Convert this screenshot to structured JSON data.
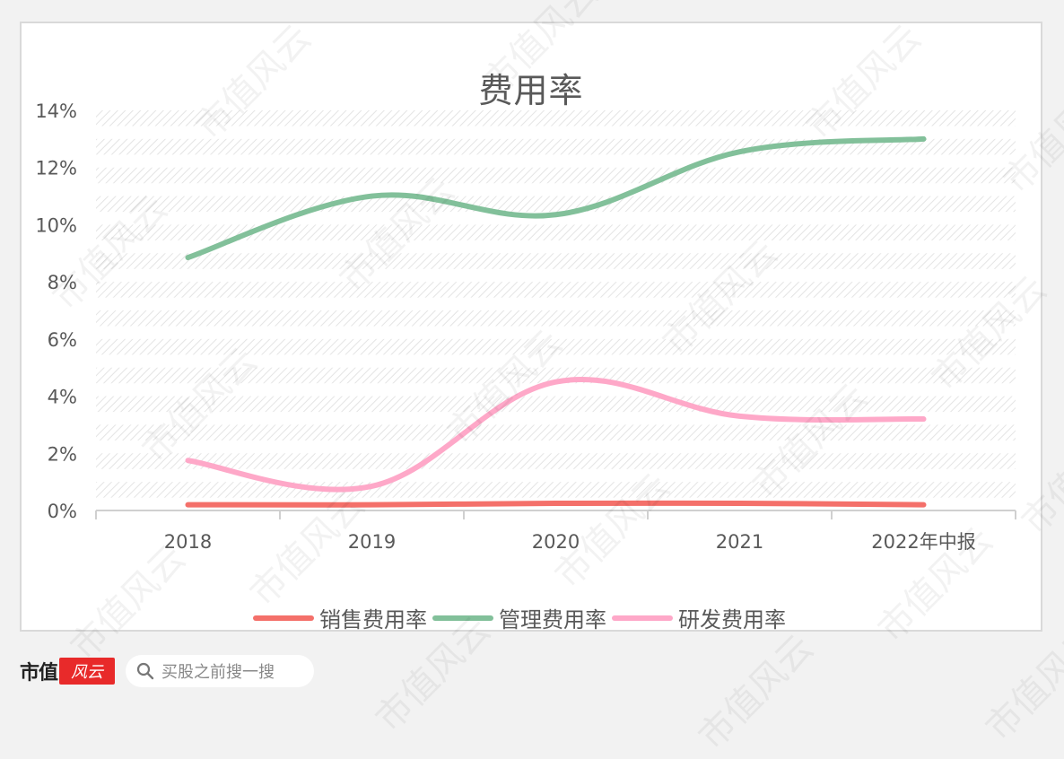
{
  "chart_data": {
    "type": "line",
    "title": "费用率",
    "xlabel": "",
    "ylabel": "",
    "categories": [
      "2018",
      "2019",
      "2020",
      "2021",
      "2022年中报"
    ],
    "y_ticks": [
      "0%",
      "2%",
      "4%",
      "6%",
      "8%",
      "10%",
      "12%",
      "14%"
    ],
    "ylim": [
      0,
      14
    ],
    "grid": "hatched horizontal bands",
    "smooth": true,
    "legend_position": "bottom",
    "series": [
      {
        "name": "销售费用率",
        "color": "#f4706a",
        "values": [
          0.2,
          0.2,
          0.25,
          0.25,
          0.2
        ]
      },
      {
        "name": "管理费用率",
        "color": "#82c09a",
        "values": [
          8.85,
          11.0,
          10.35,
          12.55,
          13.0
        ]
      },
      {
        "name": "研发费用率",
        "color": "#fea8c8",
        "values": [
          1.75,
          0.85,
          4.5,
          3.3,
          3.2
        ]
      }
    ]
  },
  "footer": {
    "brand": "市值",
    "brand_badge": "风云",
    "search_placeholder": "买股之前搜一搜",
    "search_icon": "search-icon"
  },
  "watermark": "市值风云"
}
